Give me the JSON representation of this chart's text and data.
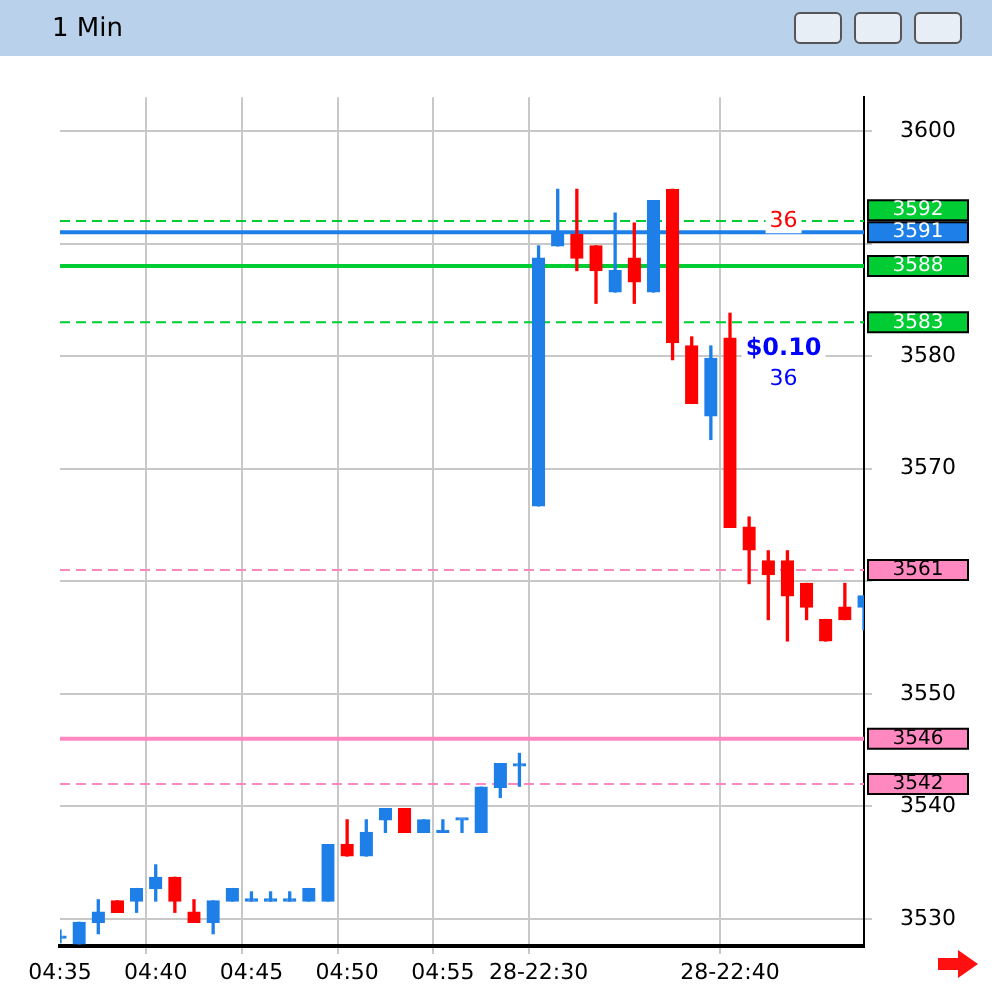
{
  "chart_data": {
    "type": "candlestick",
    "title": "1 Min",
    "categories": [
      "04:35",
      null,
      null,
      null,
      null,
      "04:40",
      null,
      null,
      null,
      null,
      "04:45",
      null,
      null,
      null,
      null,
      "04:50",
      null,
      null,
      null,
      null,
      "04:55",
      null,
      null,
      null,
      null,
      "28-22:30",
      null,
      null,
      null,
      null,
      null,
      null,
      null,
      null,
      null,
      "28-22:40",
      null,
      null,
      null,
      null,
      null,
      null,
      null
    ],
    "ohlc": [
      [
        3528.3,
        3529.0,
        3527.9,
        3528.3
      ],
      [
        3527.8,
        3529.7,
        3527.8,
        3529.7
      ],
      [
        3529.7,
        3531.7,
        3528.7,
        3530.6
      ],
      [
        3531.6,
        3531.6,
        3530.6,
        3530.6
      ],
      [
        3531.6,
        3532.7,
        3530.6,
        3532.7
      ],
      [
        3532.7,
        3534.8,
        3531.6,
        3533.7
      ],
      [
        3533.7,
        3533.7,
        3530.6,
        3531.6
      ],
      [
        3530.6,
        3531.7,
        3529.7,
        3529.7
      ],
      [
        3529.7,
        3531.6,
        3528.7,
        3531.6
      ],
      [
        3531.6,
        3532.7,
        3531.6,
        3532.7
      ],
      [
        3531.6,
        3532.4,
        3531.6,
        3531.6
      ],
      [
        3531.6,
        3532.4,
        3531.6,
        3531.6
      ],
      [
        3531.6,
        3532.4,
        3531.6,
        3531.6
      ],
      [
        3531.6,
        3532.7,
        3531.6,
        3532.7
      ],
      [
        3531.6,
        3536.6,
        3531.6,
        3536.6
      ],
      [
        3536.6,
        3538.8,
        3535.6,
        3535.6
      ],
      [
        3535.6,
        3538.8,
        3535.6,
        3537.7
      ],
      [
        3538.8,
        3539.8,
        3537.7,
        3539.8
      ],
      [
        3539.8,
        3539.8,
        3537.7,
        3537.7
      ],
      [
        3537.7,
        3538.8,
        3537.7,
        3538.8
      ],
      [
        3537.7,
        3538.8,
        3537.7,
        3537.7
      ],
      [
        3538.8,
        3538.8,
        3537.7,
        3538.8
      ],
      [
        3537.7,
        3541.7,
        3537.7,
        3541.7
      ],
      [
        3541.7,
        3543.8,
        3540.8,
        3543.8
      ],
      [
        3543.6,
        3544.7,
        3541.8,
        3543.6
      ],
      [
        3566.7,
        3589.8,
        3566.7,
        3588.7
      ],
      [
        3589.8,
        3594.8,
        3589.8,
        3590.8
      ],
      [
        3590.8,
        3594.8,
        3587.6,
        3588.7
      ],
      [
        3589.8,
        3589.8,
        3584.7,
        3587.6
      ],
      [
        3585.7,
        3592.7,
        3585.7,
        3587.6
      ],
      [
        3588.7,
        3591.8,
        3584.7,
        3586.6
      ],
      [
        3585.7,
        3593.8,
        3585.7,
        3593.8
      ],
      [
        3594.8,
        3594.8,
        3579.7,
        3581.2
      ],
      [
        3580.9,
        3581.7,
        3575.8,
        3575.8
      ],
      [
        3574.7,
        3580.9,
        3572.6,
        3579.8
      ],
      [
        3581.6,
        3583.8,
        3564.8,
        3564.8
      ],
      [
        3564.8,
        3565.7,
        3559.8,
        3562.8
      ],
      [
        3561.8,
        3562.7,
        3556.6,
        3560.6
      ],
      [
        3561.8,
        3562.7,
        3554.7,
        3558.7
      ],
      [
        3559.8,
        3559.8,
        3556.6,
        3557.7
      ],
      [
        3556.6,
        3556.6,
        3554.7,
        3554.7
      ],
      [
        3557.7,
        3559.8,
        3556.6,
        3556.6
      ],
      [
        3557.7,
        3558.7,
        3555.7,
        3558.7
      ]
    ],
    "colors": [
      "#1e7fe8",
      "#1e7fe8",
      "#1e7fe8",
      "#ff0000",
      "#1e7fe8",
      "#1e7fe8",
      "#ff0000",
      "#ff0000",
      "#1e7fe8",
      "#1e7fe8",
      "#1e7fe8",
      "#1e7fe8",
      "#1e7fe8",
      "#1e7fe8",
      "#1e7fe8",
      "#ff0000",
      "#1e7fe8",
      "#1e7fe8",
      "#ff0000",
      "#1e7fe8",
      "#1e7fe8",
      "#1e7fe8",
      "#1e7fe8",
      "#1e7fe8",
      "#1e7fe8",
      "#1e7fe8",
      "#1e7fe8",
      "#ff0000",
      "#ff0000",
      "#1e7fe8",
      "#ff0000",
      "#1e7fe8",
      "#ff0000",
      "#ff0000",
      "#1e7fe8",
      "#ff0000",
      "#ff0000",
      "#ff0000",
      "#ff0000",
      "#ff0000",
      "#ff0000",
      "#ff0000",
      "#1e7fe8"
    ],
    "ylim": [
      3527.6,
      3603
    ],
    "yticks": [
      3530,
      3540,
      3550,
      {
        "value": 3560,
        "label": null
      },
      3570,
      3580,
      {
        "value": 3590,
        "label": null
      },
      3600
    ],
    "grid": true,
    "ref_lines": [
      {
        "axis": "y",
        "value": 3592,
        "label": "3592",
        "color": "#00cc33",
        "line_style": "dashed"
      },
      {
        "axis": "y",
        "value": 3591,
        "label": "3591",
        "color": "#1e7fe8",
        "line_style": "solid"
      },
      {
        "axis": "y",
        "value": 3588,
        "label": "3588",
        "color": "#00cc33",
        "line_style": "solid"
      },
      {
        "axis": "y",
        "value": 3583,
        "label": "3583",
        "color": "#00cc33",
        "line_style": "dashed"
      },
      {
        "axis": "y",
        "value": 3561,
        "label": "3561",
        "color": "#ff88c0",
        "line_style": "dashed"
      },
      {
        "axis": "y",
        "value": 3546,
        "label": "3546",
        "color": "#ff88c0",
        "line_style": "solid"
      },
      {
        "axis": "y",
        "value": 3542,
        "label": "3542",
        "color": "#ff88c0",
        "line_style": "dashed"
      }
    ],
    "annotations": [
      "36",
      "$0.10",
      "36"
    ]
  }
}
